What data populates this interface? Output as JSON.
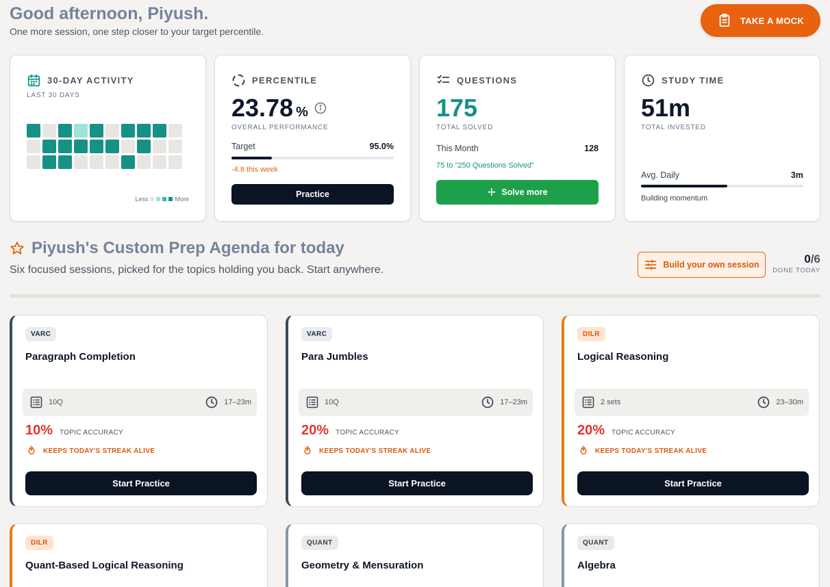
{
  "header": {
    "greeting": "Good afternoon, Piyush.",
    "subtitle": "One more session, one step closer to your target percentile.",
    "mock_button": "TAKE A MOCK"
  },
  "activity": {
    "title": "30-DAY ACTIVITY",
    "subtitle": "LAST 30 DAYS",
    "grid": [
      3,
      0,
      3,
      1,
      3,
      0,
      3,
      3,
      3,
      0,
      0,
      3,
      3,
      3,
      3,
      3,
      0,
      3,
      0,
      0,
      0,
      3,
      3,
      0,
      0,
      0,
      3,
      0,
      0,
      0
    ],
    "legend_less": "Less",
    "legend_more": "More"
  },
  "percentile": {
    "title": "PERCENTILE",
    "value": "23.78",
    "unit": "%",
    "label": "OVERALL PERFORMANCE",
    "target_label": "Target",
    "target_value": "95.0%",
    "progress": 0.25,
    "delta": "-4.8 this week",
    "button": "Practice"
  },
  "questions": {
    "title": "QUESTIONS",
    "value": "175",
    "label": "TOTAL SOLVED",
    "month_label": "This Month",
    "month_value": "128",
    "goal_note": "75 to \"250 Questions Solved\"",
    "button": "Solve more"
  },
  "study": {
    "title": "STUDY TIME",
    "value": "51m",
    "label": "TOTAL INVESTED",
    "daily_label": "Avg. Daily",
    "daily_value": "3m",
    "progress": 0.53,
    "note": "Building momentum"
  },
  "agenda": {
    "title": "Piyush's Custom Prep Agenda for today",
    "subtitle": "Six focused sessions, picked for the topics holding you back. Start anywhere.",
    "build_button": "Build your own session",
    "done_count": "0",
    "done_total": "/6",
    "done_label": "DONE TODAY"
  },
  "sessions": [
    {
      "tag": "VARC",
      "title": "Paragraph Completion",
      "items": "10Q",
      "time": "17–23m",
      "accuracy": "10%",
      "accuracy_label": "TOPIC ACCURACY",
      "streak": "KEEPS TODAY'S STREAK ALIVE",
      "button": "Start Practice"
    },
    {
      "tag": "VARC",
      "title": "Para Jumbles",
      "items": "10Q",
      "time": "17–23m",
      "accuracy": "20%",
      "accuracy_label": "TOPIC ACCURACY",
      "streak": "KEEPS TODAY'S STREAK ALIVE",
      "button": "Start Practice"
    },
    {
      "tag": "DILR",
      "title": "Logical Reasoning",
      "items": "2 sets",
      "time": "23–30m",
      "accuracy": "20%",
      "accuracy_label": "TOPIC ACCURACY",
      "streak": "KEEPS TODAY'S STREAK ALIVE",
      "button": "Start Practice"
    },
    {
      "tag": "DILR",
      "title": "Quant-Based Logical Reasoning"
    },
    {
      "tag": "QUANT",
      "title": "Geometry & Mensuration"
    },
    {
      "tag": "QUANT",
      "title": "Algebra"
    }
  ],
  "colors": {
    "accent_orange": "#e8620f",
    "teal": "#159186",
    "green": "#1ea04b",
    "dark": "#0a1422",
    "red": "#e3342f"
  }
}
